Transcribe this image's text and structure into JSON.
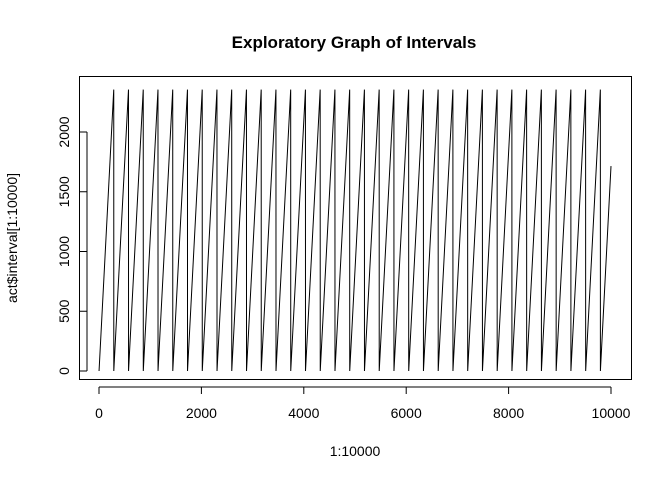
{
  "chart_data": {
    "type": "line",
    "title": "Exploratory Graph of Intervals",
    "xlabel": "1:10000",
    "ylabel": "act$interval[1:10000]",
    "xlim": [
      0,
      10000
    ],
    "ylim": [
      0,
      2355
    ],
    "x_ticks": [
      0,
      2000,
      4000,
      6000,
      8000,
      10000
    ],
    "y_ticks": [
      0,
      500,
      1000,
      1500,
      2000
    ],
    "grid": false,
    "legend": "none",
    "line_color": "#000000",
    "series": [
      {
        "x": [
          1,
          288,
          289,
          576,
          577,
          864,
          865,
          1152,
          1153,
          1440,
          1441,
          1728,
          1729,
          2016,
          2017,
          2304,
          2305,
          2592,
          2593,
          2880,
          2881,
          3168,
          3169,
          3456,
          3457,
          3744,
          3745,
          4032,
          4033,
          4320,
          4321,
          4608,
          4609,
          4896,
          4897,
          5184,
          5185,
          5472,
          5473,
          5760,
          5761,
          6048,
          6049,
          6336,
          6337,
          6624,
          6625,
          6912,
          6913,
          7200,
          7201,
          7488,
          7489,
          7776,
          7777,
          8064,
          8065,
          8352,
          8353,
          8640,
          8641,
          8928,
          8929,
          9216,
          9217,
          9504,
          9505,
          9792,
          9793,
          10000
        ],
        "y": [
          0,
          2355,
          0,
          2355,
          0,
          2355,
          0,
          2355,
          0,
          2355,
          0,
          2355,
          0,
          2355,
          0,
          2355,
          0,
          2355,
          0,
          2355,
          0,
          2355,
          0,
          2355,
          0,
          2355,
          0,
          2355,
          0,
          2355,
          0,
          2355,
          0,
          2355,
          0,
          2355,
          0,
          2355,
          0,
          2355,
          0,
          2355,
          0,
          2355,
          0,
          2355,
          0,
          2355,
          0,
          2355,
          0,
          2355,
          0,
          2355,
          0,
          2355,
          0,
          2355,
          0,
          2355,
          0,
          2355,
          0,
          2355,
          0,
          2355,
          0,
          2355,
          0,
          1715
        ]
      }
    ]
  }
}
